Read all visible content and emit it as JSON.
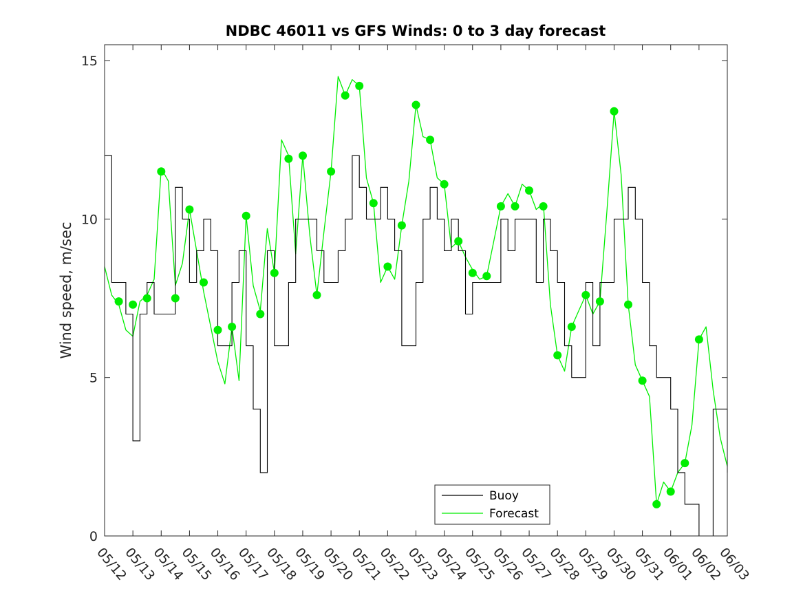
{
  "chart_data": {
    "type": "line",
    "title": "NDBC 46011 vs GFS Winds: 0 to 3 day forecast",
    "xlabel": "",
    "ylabel": "Wind speed, m/sec",
    "xlim": [
      0,
      22
    ],
    "ylim": [
      0,
      15.5
    ],
    "yticks": [
      0,
      5,
      10,
      15
    ],
    "x_tick_labels": [
      "05/12",
      "05/13",
      "05/14",
      "05/15",
      "05/16",
      "05/17",
      "05/18",
      "05/19",
      "05/20",
      "05/21",
      "05/22",
      "05/23",
      "05/24",
      "05/25",
      "05/26",
      "05/27",
      "05/28",
      "05/29",
      "05/30",
      "05/31",
      "06/01",
      "06/02",
      "06/03"
    ],
    "legend": {
      "placement": "bottom-right",
      "entries": [
        "Buoy",
        "Forecast"
      ]
    },
    "colors": {
      "buoy": "#000000",
      "forecast": "#00ee00",
      "marker": "#00ee00"
    },
    "series": [
      {
        "name": "Buoy",
        "x": [
          0,
          0.25,
          0.5,
          0.75,
          1,
          1.25,
          1.5,
          1.75,
          2,
          2.25,
          2.5,
          2.75,
          3,
          3.25,
          3.5,
          3.75,
          4,
          4.25,
          4.5,
          4.75,
          5,
          5.25,
          5.5,
          5.75,
          6,
          6.25,
          6.5,
          6.75,
          7,
          7.25,
          7.5,
          7.75,
          8,
          8.25,
          8.5,
          8.75,
          9,
          9.25,
          9.5,
          9.75,
          10,
          10.25,
          10.5,
          10.75,
          11,
          11.25,
          11.5,
          11.75,
          12,
          12.25,
          12.5,
          12.75,
          13,
          13.25,
          13.5,
          13.75,
          14,
          14.25,
          14.5,
          14.75,
          15,
          15.25,
          15.5,
          15.75,
          16,
          16.25,
          16.5,
          16.75,
          17,
          17.25,
          17.5,
          17.75,
          18,
          18.25,
          18.5,
          18.75,
          19,
          19.25,
          19.5,
          19.75,
          20,
          20.25,
          20.5,
          20.75,
          21,
          21.25,
          21.5,
          21.75,
          22
        ],
        "values": [
          12,
          8,
          8,
          7,
          3,
          7,
          8,
          7,
          7,
          7,
          11,
          10,
          8,
          9,
          10,
          9,
          6,
          6,
          8,
          9,
          6,
          4,
          2,
          9,
          6,
          6,
          8,
          10,
          10,
          10,
          9,
          8,
          8,
          9,
          10,
          12,
          11,
          10,
          10,
          11,
          10,
          9,
          6,
          6,
          8,
          10,
          11,
          10,
          9,
          10,
          9,
          7,
          8,
          8,
          8,
          8,
          10,
          9,
          10,
          10,
          10,
          8,
          10,
          9,
          8,
          6,
          5,
          5,
          8,
          6,
          8,
          8,
          10,
          10,
          11,
          10,
          8,
          6,
          5,
          5,
          4,
          2,
          1,
          1,
          0,
          0,
          4,
          4,
          2
        ]
      },
      {
        "name": "Forecast",
        "x": [
          0,
          0.25,
          0.5,
          0.75,
          1,
          1.25,
          1.5,
          1.75,
          2,
          2.25,
          2.5,
          2.75,
          3,
          3.25,
          3.5,
          3.75,
          4,
          4.25,
          4.5,
          4.75,
          5,
          5.25,
          5.5,
          5.75,
          6,
          6.25,
          6.5,
          6.75,
          7,
          7.25,
          7.5,
          7.75,
          8,
          8.25,
          8.5,
          8.75,
          9,
          9.25,
          9.5,
          9.75,
          10,
          10.25,
          10.5,
          10.75,
          11,
          11.25,
          11.5,
          11.75,
          12,
          12.25,
          12.5,
          12.75,
          13,
          13.25,
          13.5,
          13.75,
          14,
          14.25,
          14.5,
          14.75,
          15,
          15.25,
          15.5,
          15.75,
          16,
          16.25,
          16.5,
          16.75,
          17,
          17.25,
          17.5,
          17.75,
          18,
          18.25,
          18.5,
          18.75,
          19,
          19.25,
          19.5,
          19.75,
          20,
          20.25,
          20.5,
          20.75,
          21,
          21.25,
          21.5,
          21.75,
          22
        ],
        "values": [
          8.5,
          7.6,
          7.3,
          6.5,
          6.3,
          7.4,
          7.6,
          8.1,
          11.6,
          11.2,
          7.9,
          8.6,
          10.3,
          9.0,
          7.7,
          6.6,
          5.5,
          4.8,
          6.6,
          4.9,
          10.1,
          7.9,
          7.1,
          9.7,
          8.3,
          12.5,
          12.0,
          8.9,
          12.0,
          9.5,
          7.6,
          9.6,
          11.5,
          14.5,
          13.9,
          14.4,
          14.2,
          11.3,
          10.5,
          8.0,
          8.5,
          8.1,
          9.8,
          11.2,
          13.6,
          12.6,
          12.5,
          11.3,
          11.1,
          9.1,
          9.3,
          8.8,
          8.4,
          8.1,
          8.2,
          9.3,
          10.4,
          10.8,
          10.4,
          11.1,
          10.9,
          10.3,
          10.5,
          7.3,
          5.7,
          5.2,
          6.6,
          7.1,
          7.6,
          7.0,
          7.4,
          10.3,
          13.4,
          11.4,
          7.3,
          5.4,
          4.9,
          4.4,
          1.0,
          1.7,
          1.4,
          2.0,
          2.3,
          3.5,
          6.2,
          6.6,
          4.6,
          3.1,
          2.2
        ]
      },
      {
        "name": "",
        "x": [
          0.5,
          1,
          1.5,
          2,
          2.5,
          3,
          3.5,
          4,
          4.5,
          5,
          5.5,
          6,
          6.5,
          7,
          7.5,
          8,
          8.5,
          9,
          9.5,
          10,
          10.5,
          11,
          11.5,
          12,
          12.5,
          13,
          13.5,
          14,
          14.5,
          15,
          15.5,
          16,
          16.5,
          17,
          17.5,
          18,
          18.5,
          19,
          19.5,
          20,
          20.5,
          21
        ],
        "values": [
          7.4,
          7.3,
          7.5,
          11.5,
          7.5,
          10.3,
          8.0,
          6.5,
          6.6,
          10.1,
          7.0,
          8.3,
          11.9,
          12.0,
          7.6,
          11.5,
          13.9,
          14.2,
          10.5,
          8.5,
          9.8,
          13.6,
          12.5,
          11.1,
          9.3,
          8.3,
          8.2,
          10.4,
          10.4,
          10.9,
          10.4,
          5.7,
          6.6,
          7.6,
          7.4,
          13.4,
          7.3,
          4.9,
          1.0,
          1.4,
          2.3,
          6.2
        ]
      }
    ]
  }
}
